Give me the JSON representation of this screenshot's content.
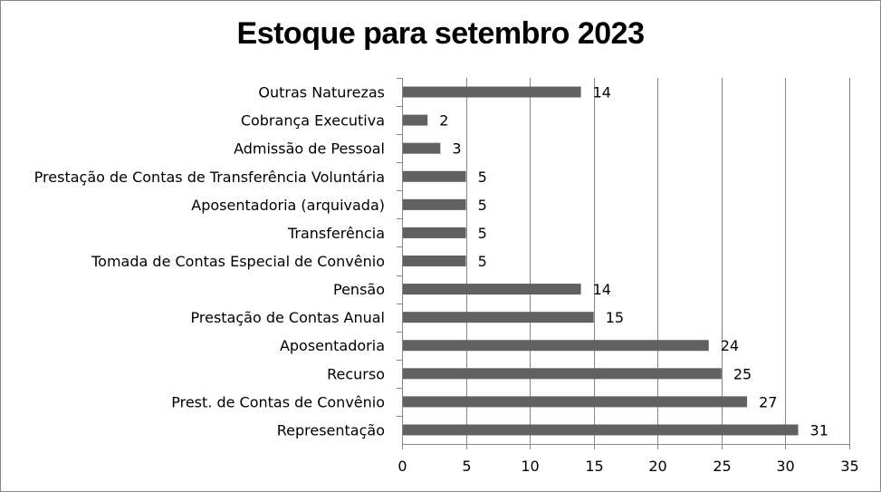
{
  "chart_data": {
    "type": "bar",
    "orientation": "horizontal",
    "title": "Estoque para setembro 2023",
    "categories": [
      "Outras Naturezas",
      "Cobrança Executiva",
      "Admissão de Pessoal",
      "Prestação de Contas de Transferência Voluntária",
      "Aposentadoria (arquivada)",
      "Transferência",
      "Tomada de Contas Especial de Convênio",
      "Pensão",
      "Prestação de Contas Anual",
      "Aposentadoria",
      "Recurso",
      "Prest. de Contas de Convênio",
      "Representação"
    ],
    "values": [
      14,
      2,
      3,
      5,
      5,
      5,
      5,
      14,
      15,
      24,
      25,
      27,
      31
    ],
    "xlim": [
      0,
      35
    ],
    "xticks": [
      0,
      5,
      10,
      15,
      20,
      25,
      30,
      35
    ],
    "grid": "vertical",
    "legend": "none",
    "bar_color": "#616161",
    "grid_color": "#868686"
  }
}
